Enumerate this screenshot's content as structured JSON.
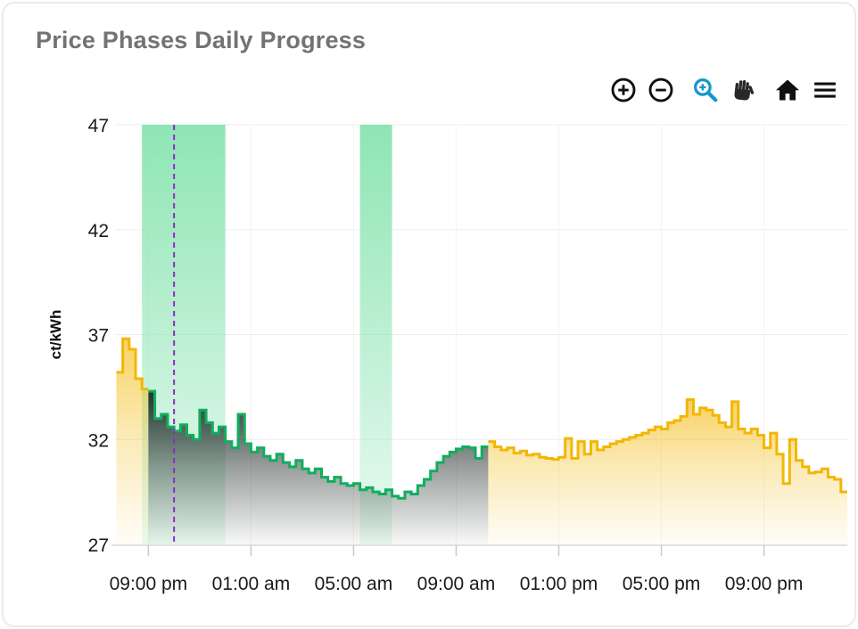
{
  "card": {
    "title": "Price Phases Daily Progress"
  },
  "toolbar": {
    "icons": [
      "zoom-in",
      "zoom-out",
      "box-zoom",
      "pan",
      "home",
      "menu"
    ],
    "active_tool": "box-zoom"
  },
  "chart_data": {
    "type": "area",
    "subtype": "step-line-phases",
    "title": "Price Phases Daily Progress",
    "xlabel": "",
    "ylabel": "ct/kWh",
    "unit": "ct/kWh",
    "ylim": [
      27,
      47
    ],
    "y_ticks": [
      27,
      32,
      37,
      42,
      47
    ],
    "x_domain_hours": [
      19.7,
      48.25
    ],
    "x_ticks": [
      {
        "hour": 21,
        "label": "09:00 pm"
      },
      {
        "hour": 25,
        "label": "01:00 am"
      },
      {
        "hour": 29,
        "label": "05:00 am"
      },
      {
        "hour": 33,
        "label": "09:00 am"
      },
      {
        "hour": 37,
        "label": "01:00 pm"
      },
      {
        "hour": 41,
        "label": "05:00 pm"
      },
      {
        "hour": 45,
        "label": "09:00 pm"
      }
    ],
    "grid": "on",
    "legend": "none",
    "step_minutes": 15,
    "now_hour": 22.0,
    "cheap_phase_bands": [
      {
        "start_hour": 20.75,
        "end_hour": 24.0
      },
      {
        "start_hour": 29.25,
        "end_hour": 30.5
      }
    ],
    "colors": {
      "expensive_line": "#F2B705",
      "expensive_fill": "#F2B705",
      "cheap_line": "#10AE5E",
      "cheap_fill_dark": "#1F2A26",
      "phase_band": "#8EE5B4",
      "now_line": "#8E2BC6",
      "grid_h": "#EDEDED",
      "grid_v": "#F3F3F3",
      "axis_line": "#D8D8D8",
      "tick_mark": "#C9C9C9"
    },
    "series": [
      {
        "name": "price-expensive-evening",
        "phase": "expensive",
        "start_hour": 19.75,
        "values": [
          35.2,
          36.8,
          36.3,
          34.9,
          34.4
        ]
      },
      {
        "name": "price-cheap-night",
        "phase": "cheap",
        "start_hour": 21.0,
        "values": [
          34.3,
          33.0,
          33.2,
          32.6,
          32.4,
          32.7,
          32.2,
          32.0,
          33.4,
          32.8,
          32.3,
          32.6,
          31.9,
          31.6,
          33.2,
          31.8,
          31.4,
          31.6,
          31.2,
          31.0,
          31.3,
          30.9,
          30.7,
          31.0,
          30.6,
          30.4,
          30.6,
          30.2,
          30.0,
          30.2,
          29.9,
          29.8,
          29.9,
          29.6,
          29.7,
          29.5,
          29.4,
          29.6,
          29.3,
          29.2,
          29.5,
          29.4,
          29.8,
          30.1,
          30.5,
          30.9,
          31.2,
          31.4,
          31.55,
          31.65,
          31.6,
          31.1,
          31.65
        ]
      },
      {
        "name": "price-expensive-day",
        "phase": "expensive",
        "start_hour": 34.25,
        "values": [
          31.9,
          31.65,
          31.5,
          31.6,
          31.35,
          31.45,
          31.25,
          31.3,
          31.15,
          31.1,
          31.05,
          31.15,
          32.05,
          31.1,
          31.9,
          31.3,
          31.9,
          31.5,
          31.65,
          31.8,
          31.9,
          32.0,
          32.1,
          32.2,
          32.3,
          32.45,
          32.6,
          32.5,
          32.8,
          32.9,
          33.1,
          33.9,
          33.2,
          33.5,
          33.4,
          33.15,
          32.8,
          32.6,
          33.8,
          32.5,
          32.3,
          32.5,
          32.2,
          31.6,
          32.3,
          31.3,
          29.9,
          32.0,
          31.0,
          30.7,
          30.4,
          30.45,
          30.6,
          30.2,
          30.1,
          29.5
        ]
      }
    ]
  }
}
